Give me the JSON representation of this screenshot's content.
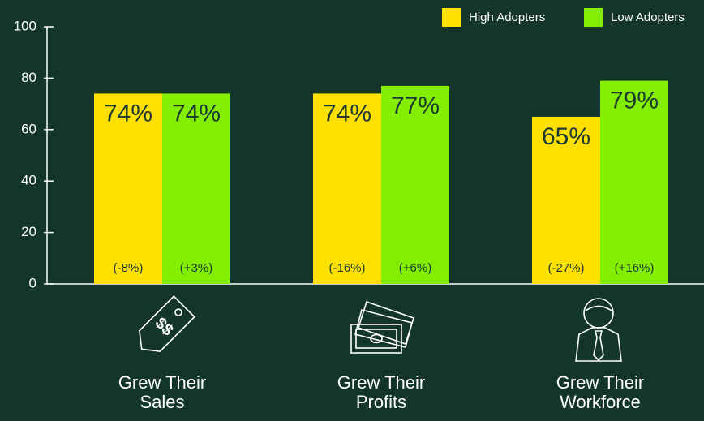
{
  "chart_data": {
    "type": "bar",
    "categories": [
      "Grew Their Sales",
      "Grew Their Profits",
      "Grew Their Workforce"
    ],
    "series": [
      {
        "name": "High Adopters",
        "color": "#ffe000",
        "values": [
          74,
          74,
          65
        ],
        "value_labels": [
          "74%",
          "74%",
          "65%"
        ],
        "annotations": [
          "(-8%)",
          "(-16%)",
          "(-27%)"
        ]
      },
      {
        "name": "Low Adopters",
        "color": "#84ee00",
        "values": [
          74,
          77,
          79
        ],
        "value_labels": [
          "74%",
          "77%",
          "79%"
        ],
        "annotations": [
          "(+3%)",
          "(+6%)",
          "(+16%)"
        ]
      }
    ],
    "ylim": [
      0,
      100
    ],
    "yticks": [
      0,
      20,
      40,
      60,
      80,
      100
    ],
    "legend": "top-right"
  }
}
